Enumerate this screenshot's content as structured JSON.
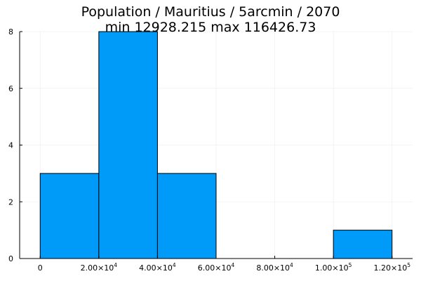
{
  "chart_data": {
    "type": "bar",
    "title": "Population / Mauritius / 5arcmin / 2070",
    "subtitle": "min 12928.215  max 116426.73",
    "xlabel": "",
    "ylabel": "",
    "bins": [
      {
        "x0": 0,
        "x1": 20000,
        "count": 3
      },
      {
        "x0": 20000,
        "x1": 40000,
        "count": 8
      },
      {
        "x0": 40000,
        "x1": 60000,
        "count": 3
      },
      {
        "x0": 60000,
        "x1": 80000,
        "count": 0
      },
      {
        "x0": 80000,
        "x1": 100000,
        "count": 0
      },
      {
        "x0": 100000,
        "x1": 120000,
        "count": 1
      }
    ],
    "xlim": [
      -7000,
      127000
    ],
    "ylim": [
      0,
      8
    ],
    "x_ticks": [
      {
        "value": 0,
        "mantissa": "0",
        "exponent": ""
      },
      {
        "value": 20000,
        "mantissa": "2.00×10",
        "exponent": "4"
      },
      {
        "value": 40000,
        "mantissa": "4.00×10",
        "exponent": "4"
      },
      {
        "value": 60000,
        "mantissa": "6.00×10",
        "exponent": "4"
      },
      {
        "value": 80000,
        "mantissa": "8.00×10",
        "exponent": "4"
      },
      {
        "value": 100000,
        "mantissa": "1.00×10",
        "exponent": "5"
      },
      {
        "value": 120000,
        "mantissa": "1.20×10",
        "exponent": "5"
      }
    ],
    "y_ticks": [
      {
        "value": 0,
        "label": "0"
      },
      {
        "value": 2,
        "label": "2"
      },
      {
        "value": 4,
        "label": "4"
      },
      {
        "value": 6,
        "label": "6"
      },
      {
        "value": 8,
        "label": "8"
      }
    ],
    "bar_color": "#009af9",
    "grid": true,
    "legend": "none"
  }
}
